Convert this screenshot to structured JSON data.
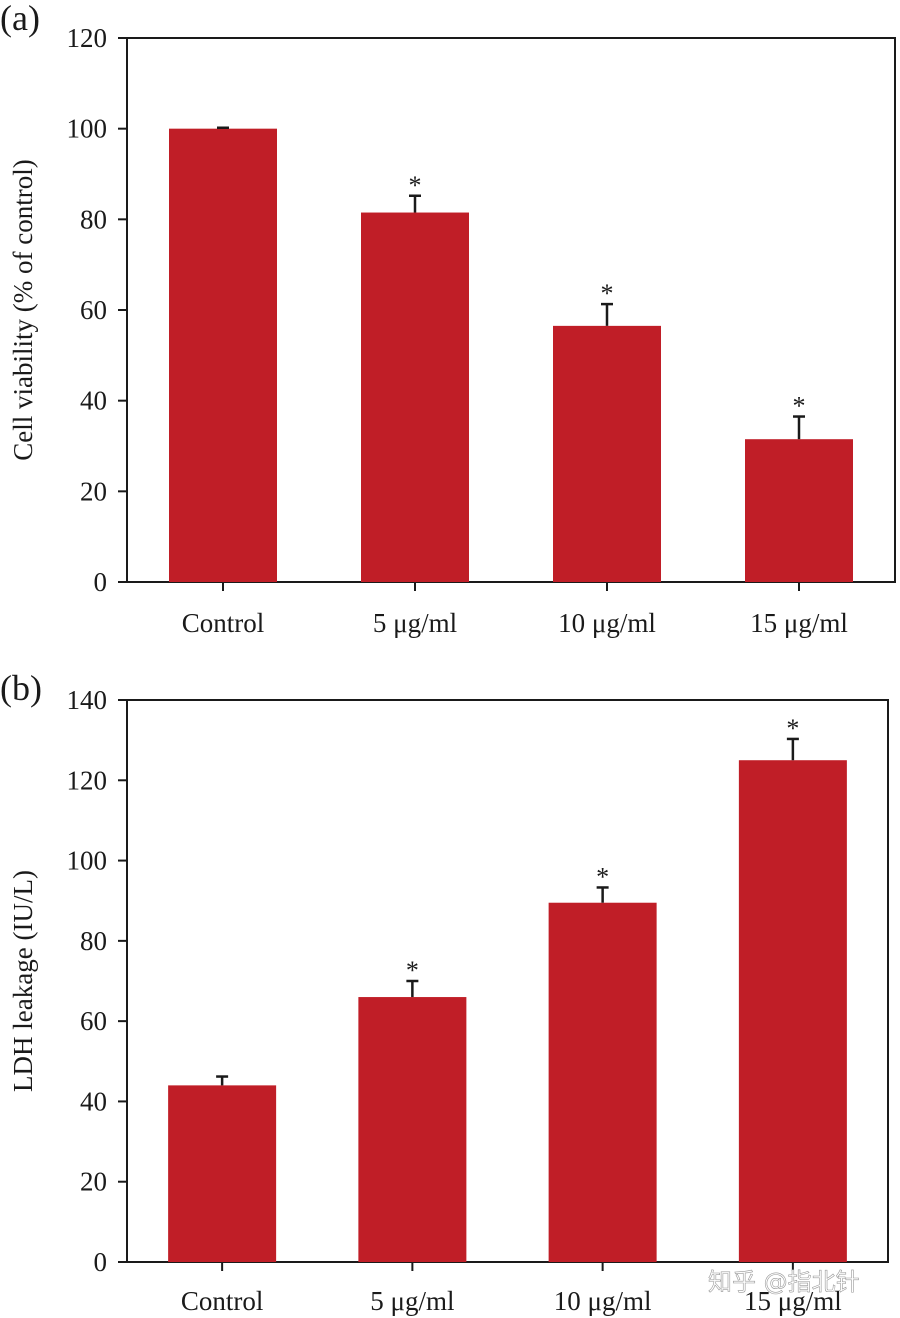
{
  "colors": {
    "bar": "#c01e27",
    "axis": "#1a1a1a"
  },
  "watermark": "知乎 @指北针",
  "chart_data": [
    {
      "type": "bar",
      "panel_label": "(a)",
      "ylabel": "Cell viability (% of control)",
      "categories": [
        "Control",
        "5 μg/ml",
        "10 μg/ml",
        "15 μg/ml"
      ],
      "values": [
        100,
        81.5,
        56.5,
        31.5
      ],
      "errors": [
        0.2,
        3.7,
        4.8,
        5.0
      ],
      "annotations": [
        "",
        "*",
        "*",
        "*"
      ],
      "ylim": [
        0,
        120
      ],
      "yticks": [
        0,
        20,
        40,
        60,
        80,
        100,
        120
      ],
      "grid": false,
      "legend": "none"
    },
    {
      "type": "bar",
      "panel_label": "(b)",
      "ylabel": "LDH leakage (IU/L)",
      "categories": [
        "Control",
        "5 μg/ml",
        "10 μg/ml",
        "15 μg/ml"
      ],
      "values": [
        44,
        66,
        89.5,
        125
      ],
      "errors": [
        2.2,
        4.0,
        3.8,
        5.3
      ],
      "annotations": [
        "",
        "*",
        "*",
        "*"
      ],
      "ylim": [
        0,
        140
      ],
      "yticks": [
        0,
        20,
        40,
        60,
        80,
        100,
        120,
        140
      ],
      "grid": false,
      "legend": "none"
    }
  ]
}
